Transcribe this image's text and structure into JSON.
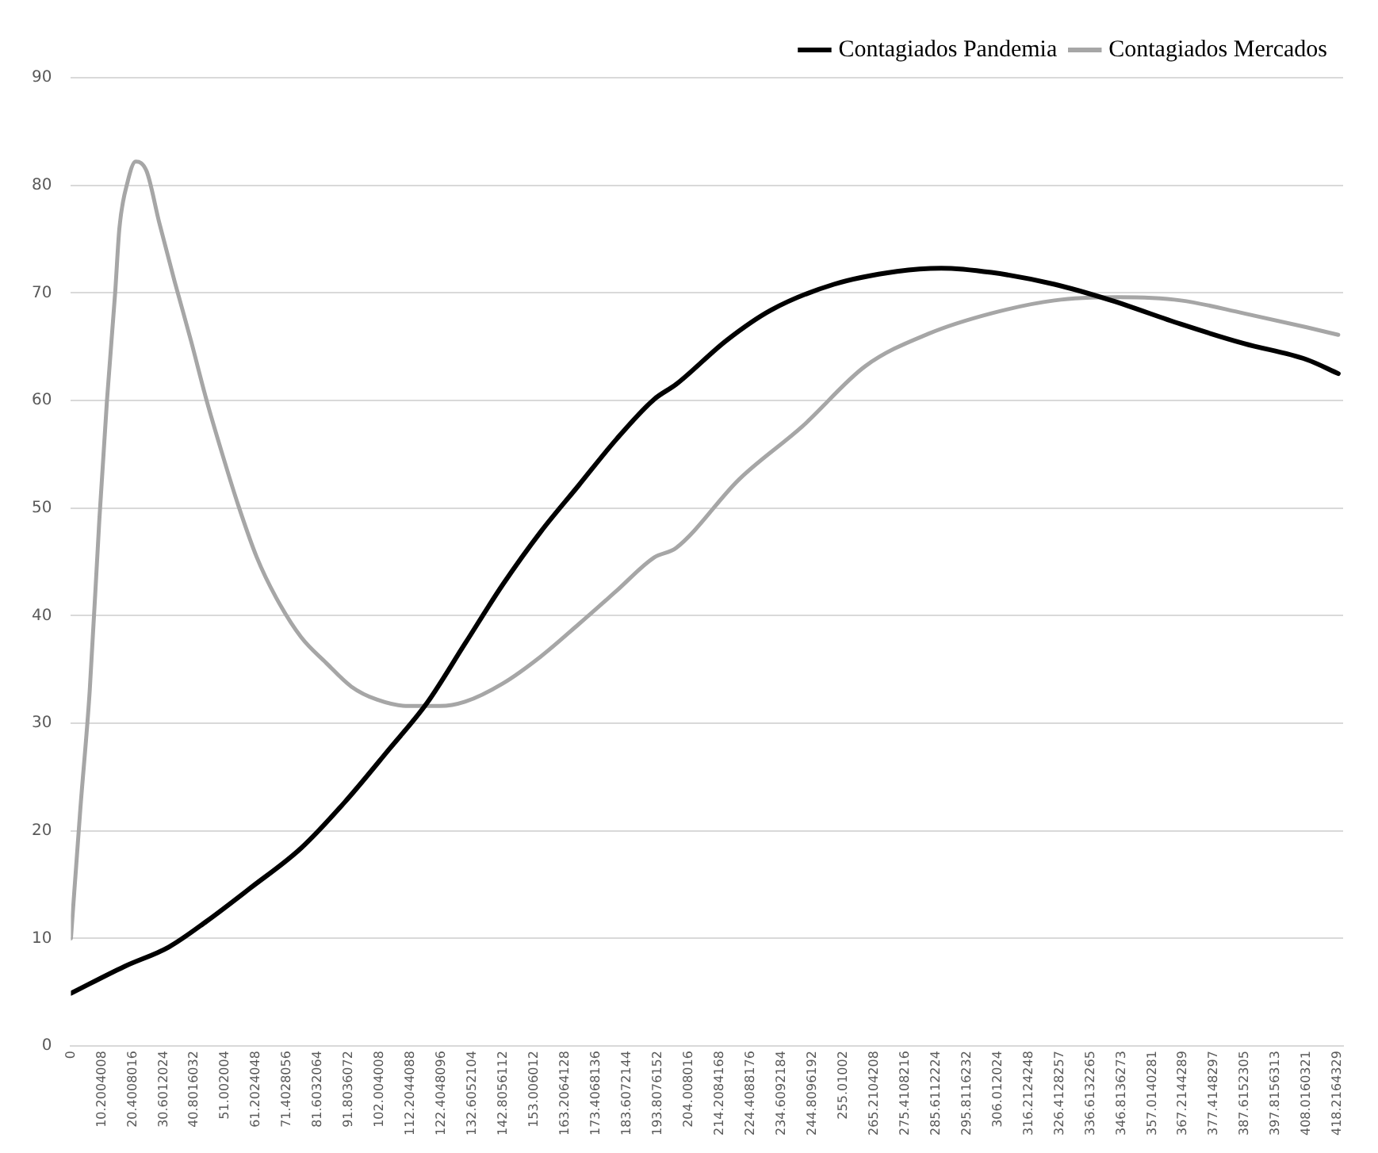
{
  "chart_data": {
    "type": "line",
    "xlim": [
      0,
      420
    ],
    "ylim": [
      0,
      90
    ],
    "yticks": [
      0,
      10,
      20,
      30,
      40,
      50,
      60,
      70,
      80,
      90
    ],
    "xticks": [
      0,
      {
        "value": 10.2004008,
        "label": "10.2004008"
      },
      {
        "value": 20.4008016,
        "label": "20.4008016"
      },
      {
        "value": 30.6012024,
        "label": "30.6012024"
      },
      {
        "value": 40.8016032,
        "label": "40.8016032"
      },
      {
        "value": 51.002004,
        "label": "51.002004"
      },
      {
        "value": 61.2024048,
        "label": "61.2024048"
      },
      {
        "value": 71.4028056,
        "label": "71.4028056"
      },
      {
        "value": 81.6032064,
        "label": "81.6032064"
      },
      {
        "value": 91.8036072,
        "label": "91.8036072"
      },
      {
        "value": 102.004008,
        "label": "102.004008"
      },
      {
        "value": 112.2044088,
        "label": "112.2044088"
      },
      {
        "value": 122.4048096,
        "label": "122.4048096"
      },
      {
        "value": 132.6052104,
        "label": "132.6052104"
      },
      {
        "value": 142.8056112,
        "label": "142.8056112"
      },
      {
        "value": 153.006012,
        "label": "153.006012"
      },
      {
        "value": 163.2064128,
        "label": "163.2064128"
      },
      {
        "value": 173.4068136,
        "label": "173.4068136"
      },
      {
        "value": 183.6072144,
        "label": "183.6072144"
      },
      {
        "value": 193.8076152,
        "label": "193.8076152"
      },
      {
        "value": 204.008016,
        "label": "204.008016"
      },
      {
        "value": 214.2084168,
        "label": "214.2084168"
      },
      {
        "value": 224.4088176,
        "label": "224.4088176"
      },
      {
        "value": 234.6092184,
        "label": "234.6092184"
      },
      {
        "value": 244.8096192,
        "label": "244.8096192"
      },
      {
        "value": 255.01002,
        "label": "255.01002"
      },
      {
        "value": 265.2104208,
        "label": "265.2104208"
      },
      {
        "value": 275.4108216,
        "label": "275.4108216"
      },
      {
        "value": 285.6112224,
        "label": "285.6112224"
      },
      {
        "value": 295.8116232,
        "label": "295.8116232"
      },
      {
        "value": 306.012024,
        "label": "306.012024"
      },
      {
        "value": 316.2124248,
        "label": "316.2124248"
      },
      {
        "value": 326.4128257,
        "label": "326.4128257"
      },
      {
        "value": 336.6132265,
        "label": "336.6132265"
      },
      {
        "value": 346.8136273,
        "label": "346.8136273"
      },
      {
        "value": 357.0140281,
        "label": "357.0140281"
      },
      {
        "value": 367.2144289,
        "label": "367.2144289"
      },
      {
        "value": 377.4148297,
        "label": "377.4148297"
      },
      {
        "value": 387.6152305,
        "label": "387.6152305"
      },
      {
        "value": 397.8156313,
        "label": "397.8156313"
      },
      {
        "value": 408.0160321,
        "label": "408.0160321"
      },
      {
        "value": 418.2164329,
        "label": "418.2164329"
      }
    ],
    "grid": "y",
    "legend": "top right",
    "marker": "none",
    "line_style": "solid",
    "series": [
      {
        "name": "Contagiados Pandemia",
        "color": "#000000",
        "x": [
          0,
          17.7,
          32.3,
          44.8,
          59.3,
          76.0,
          90.5,
          105.1,
          117.6,
          130.1,
          142.6,
          155.1,
          167.6,
          180.1,
          192.5,
          199.8,
          216.5,
          231.1,
          251.9,
          272.7,
          287.3,
          303.9,
          324.7,
          343.5,
          366.4,
          387.2,
          408.0,
          418.4
        ],
        "values": [
          4.9,
          7.4,
          9.2,
          11.6,
          14.7,
          18.4,
          22.7,
          27.6,
          31.9,
          37.4,
          42.9,
          47.8,
          52.1,
          56.4,
          60.1,
          61.5,
          65.6,
          68.4,
          70.8,
          72.0,
          72.3,
          71.9,
          70.8,
          69.3,
          67.1,
          65.3,
          63.8,
          62.5
        ]
      },
      {
        "name": "Contagiados Mercados",
        "color": "#a6a6a6",
        "x": [
          0,
          3.1,
          6.2,
          9.4,
          11.9,
          14.6,
          16.0,
          18.7,
          21.4,
          25.0,
          29.1,
          34.3,
          39.6,
          44.8,
          50.0,
          55.2,
          61.4,
          67.7,
          76.0,
          84.3,
          92.6,
          101.0,
          111.4,
          121.8,
          130.1,
          142.6,
          155.1,
          167.6,
          180.1,
          192.5,
          199.8,
          220.7,
          241.5,
          262.3,
          283.1,
          303.9,
          324.7,
          345.6,
          366.4,
          387.2,
          408.0,
          418.4
        ],
        "values": [
          10,
          22,
          33,
          49,
          60,
          70,
          76,
          80.3,
          82.2,
          81.3,
          76.6,
          71,
          65.6,
          60,
          55,
          50.3,
          45.4,
          41.7,
          38,
          35.6,
          33.4,
          32.2,
          31.6,
          31.6,
          32,
          33.7,
          36.2,
          39.2,
          42.3,
          45.4,
          46.3,
          52.7,
          57.6,
          63.2,
          66.2,
          68.1,
          69.3,
          69.6,
          69.3,
          68.1,
          66.8,
          66.1
        ]
      }
    ]
  }
}
